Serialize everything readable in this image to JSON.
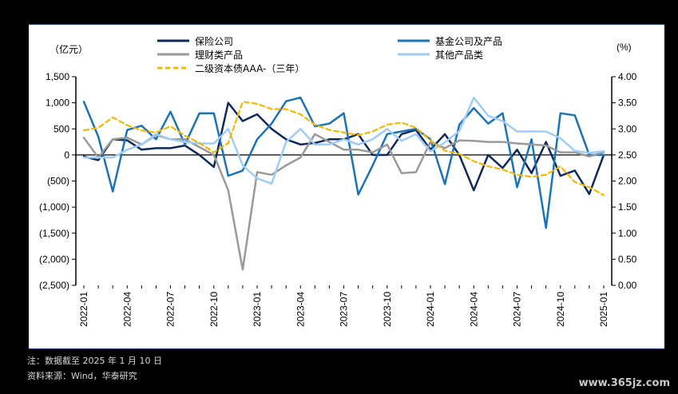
{
  "chart_data": {
    "type": "line",
    "left_unit": "（亿元）",
    "right_unit": "(%)",
    "left_ticks": [
      "1,500",
      "1,000",
      "500",
      "0",
      "(500)",
      "(1,000)",
      "(1,500)",
      "(2,000)",
      "(2,500)"
    ],
    "left_tick_values": [
      1500,
      1000,
      500,
      0,
      -500,
      -1000,
      -1500,
      -2000,
      -2500
    ],
    "right_ticks": [
      "4.00",
      "3.50",
      "3.00",
      "2.50",
      "2.00",
      "1.50",
      "1.00",
      "0.50",
      "0.00"
    ],
    "right_tick_values": [
      4,
      3.5,
      3,
      2.5,
      2,
      1.5,
      1,
      0.5,
      0
    ],
    "ylim_left": [
      -2500,
      1500
    ],
    "ylim_right": [
      0,
      4
    ],
    "x_labels": [
      "2022-01",
      "2022-04",
      "2022-07",
      "2022-10",
      "2023-01",
      "2023-04",
      "2023-07",
      "2023-10",
      "2024-01",
      "2024-04",
      "2024-07",
      "2024-10",
      "2025-01"
    ],
    "x_label_index": [
      0,
      3,
      6,
      9,
      12,
      15,
      18,
      21,
      24,
      27,
      30,
      33,
      36
    ],
    "x": [
      "2022-01",
      "2022-02",
      "2022-03",
      "2022-04",
      "2022-05",
      "2022-06",
      "2022-07",
      "2022-08",
      "2022-09",
      "2022-10",
      "2022-11",
      "2022-12",
      "2023-01",
      "2023-02",
      "2023-03",
      "2023-04",
      "2023-05",
      "2023-06",
      "2023-07",
      "2023-08",
      "2023-09",
      "2023-10",
      "2023-11",
      "2023-12",
      "2024-01",
      "2024-02",
      "2024-03",
      "2024-04",
      "2024-05",
      "2024-06",
      "2024-07",
      "2024-08",
      "2024-09",
      "2024-10",
      "2024-11",
      "2024-12",
      "2025-01"
    ],
    "series": [
      {
        "name": "保险公司",
        "axis": "left",
        "color": "#0e2a5a",
        "width": 2.5,
        "dash": "",
        "values": [
          -30,
          -100,
          300,
          280,
          100,
          130,
          130,
          180,
          0,
          -230,
          1000,
          650,
          780,
          500,
          300,
          200,
          230,
          300,
          300,
          400,
          0,
          0,
          400,
          480,
          100,
          400,
          0,
          -680,
          0,
          -250,
          100,
          -350,
          250,
          -400,
          -300,
          -750,
          0
        ]
      },
      {
        "name": "基金公司及产品",
        "axis": "left",
        "color": "#1a73b8",
        "width": 2.5,
        "dash": "",
        "values": [
          1020,
          350,
          -700,
          480,
          560,
          300,
          830,
          200,
          800,
          800,
          -400,
          -300,
          300,
          600,
          1030,
          1100,
          550,
          600,
          800,
          -760,
          -200,
          400,
          450,
          500,
          300,
          -560,
          580,
          900,
          600,
          800,
          -620,
          300,
          -1400,
          800,
          760,
          0,
          0
        ]
      },
      {
        "name": "理财类产品",
        "axis": "left",
        "color": "#9a9a9a",
        "width": 2.5,
        "dash": "",
        "values": [
          330,
          -50,
          300,
          330,
          200,
          380,
          300,
          300,
          150,
          0,
          -680,
          -2200,
          -330,
          -380,
          -200,
          -50,
          400,
          250,
          100,
          100,
          50,
          200,
          -350,
          -330,
          250,
          130,
          280,
          270,
          250,
          250,
          220,
          200,
          180,
          50,
          50,
          -30,
          50
        ]
      },
      {
        "name": "其他产品类",
        "axis": "left",
        "color": "#9fcdf5",
        "width": 2.5,
        "dash": "",
        "values": [
          -50,
          -50,
          -50,
          100,
          200,
          400,
          300,
          250,
          220,
          220,
          500,
          -200,
          -450,
          -550,
          250,
          500,
          200,
          200,
          300,
          200,
          300,
          500,
          270,
          400,
          70,
          240,
          460,
          1100,
          750,
          650,
          450,
          450,
          450,
          320,
          80,
          40,
          70
        ]
      },
      {
        "name": "二级资本债AAA-（三年）",
        "axis": "right",
        "color": "#f5b800",
        "width": 2.2,
        "dash": "6,4",
        "values": [
          2.97,
          3.02,
          3.22,
          3.07,
          2.97,
          2.93,
          3.05,
          2.87,
          2.73,
          2.55,
          2.73,
          3.52,
          3.48,
          3.38,
          3.38,
          3.28,
          3.08,
          2.98,
          2.93,
          2.88,
          2.95,
          3.08,
          3.12,
          3.02,
          2.78,
          2.58,
          2.52,
          2.38,
          2.28,
          2.22,
          2.12,
          2.08,
          2.12,
          2.28,
          1.98,
          1.88,
          1.73
        ]
      }
    ]
  },
  "legend": {
    "items": [
      {
        "label": "保险公司",
        "color": "#0e2a5a",
        "dash": false
      },
      {
        "label": "基金公司及产品",
        "color": "#1a73b8",
        "dash": false
      },
      {
        "label": "理财类产品",
        "color": "#9a9a9a",
        "dash": false
      },
      {
        "label": "其他产品类",
        "color": "#9fcdf5",
        "dash": false
      },
      {
        "label": "二级资本债AAA-（三年）",
        "color": "#f5b800",
        "dash": true
      }
    ]
  },
  "notes": {
    "line1": "注：数据截至 2025 年 1 月 10 日",
    "line2": "资料来源：Wind，华泰研究"
  },
  "watermark": "www.365jz.com"
}
